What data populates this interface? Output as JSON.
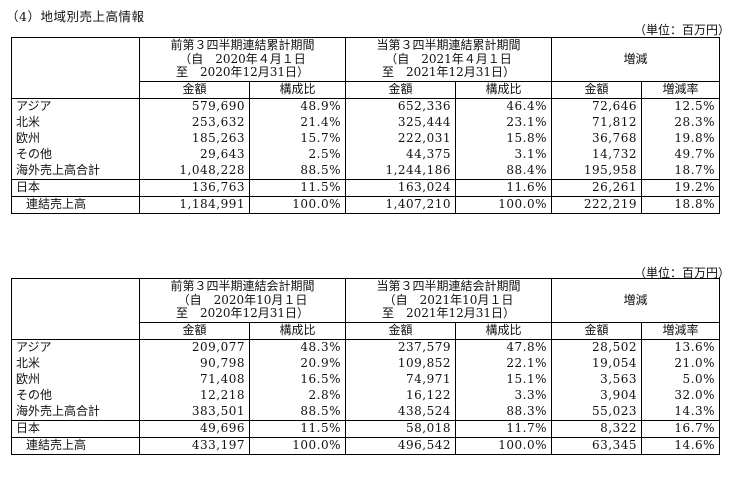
{
  "section_title": "（4）地域別売上高情報",
  "tables": [
    {
      "unit": "（単位：百万円）",
      "prev_period": {
        "title": "前第３四半期連結累計期間",
        "from": "（自　2020年４月１日",
        "to": "至　2020年12月31日）"
      },
      "curr_period": {
        "title": "当第３四半期連結累計期間",
        "from": "（自　2021年４月１日",
        "to": "至　2021年12月31日）"
      },
      "diff_header": "増減",
      "subheaders": {
        "amount": "金額",
        "ratio": "構成比",
        "amount2": "金額",
        "ratio2": "構成比",
        "diff_amount": "金額",
        "diff_rate": "増減率"
      },
      "rows": [
        {
          "label": "アジア",
          "v": [
            "579,690",
            "48.9%",
            "652,336",
            "46.4%",
            "72,646",
            "12.5%"
          ]
        },
        {
          "label": "北米",
          "v": [
            "253,632",
            "21.4%",
            "325,444",
            "23.1%",
            "71,812",
            "28.3%"
          ]
        },
        {
          "label": "欧州",
          "v": [
            "185,263",
            "15.7%",
            "222,031",
            "15.8%",
            "36,768",
            "19.8%"
          ]
        },
        {
          "label": "その他",
          "v": [
            "29,643",
            "2.5%",
            "44,375",
            "3.1%",
            "14,732",
            "49.7%"
          ]
        },
        {
          "label": "海外売上高合計",
          "v": [
            "1,048,228",
            "88.5%",
            "1,244,186",
            "88.4%",
            "195,958",
            "18.7%"
          ]
        },
        {
          "label": "日本",
          "v": [
            "136,763",
            "11.5%",
            "163,024",
            "11.6%",
            "26,261",
            "19.2%"
          ]
        },
        {
          "label": "連結売上高",
          "v": [
            "1,184,991",
            "100.0%",
            "1,407,210",
            "100.0%",
            "222,219",
            "18.8%"
          ]
        }
      ]
    },
    {
      "unit": "（単位：百万円）",
      "prev_period": {
        "title": "前第３四半期連結会計期間",
        "from": "（自　2020年10月１日",
        "to": "至　2020年12月31日）"
      },
      "curr_period": {
        "title": "当第３四半期連結会計期間",
        "from": "（自　2021年10月１日",
        "to": "至　2021年12月31日）"
      },
      "diff_header": "増減",
      "subheaders": {
        "amount": "金額",
        "ratio": "構成比",
        "amount2": "金額",
        "ratio2": "構成比",
        "diff_amount": "金額",
        "diff_rate": "増減率"
      },
      "rows": [
        {
          "label": "アジア",
          "v": [
            "209,077",
            "48.3%",
            "237,579",
            "47.8%",
            "28,502",
            "13.6%"
          ]
        },
        {
          "label": "北米",
          "v": [
            "90,798",
            "20.9%",
            "109,852",
            "22.1%",
            "19,054",
            "21.0%"
          ]
        },
        {
          "label": "欧州",
          "v": [
            "71,408",
            "16.5%",
            "74,971",
            "15.1%",
            "3,563",
            "5.0%"
          ]
        },
        {
          "label": "その他",
          "v": [
            "12,218",
            "2.8%",
            "16,122",
            "3.3%",
            "3,904",
            "32.0%"
          ]
        },
        {
          "label": "海外売上高合計",
          "v": [
            "383,501",
            "88.5%",
            "438,524",
            "88.3%",
            "55,023",
            "14.3%"
          ]
        },
        {
          "label": "日本",
          "v": [
            "49,696",
            "11.5%",
            "58,018",
            "11.7%",
            "8,322",
            "16.7%"
          ]
        },
        {
          "label": "連結売上高",
          "v": [
            "433,197",
            "100.0%",
            "496,542",
            "100.0%",
            "63,345",
            "14.6%"
          ]
        }
      ]
    }
  ]
}
